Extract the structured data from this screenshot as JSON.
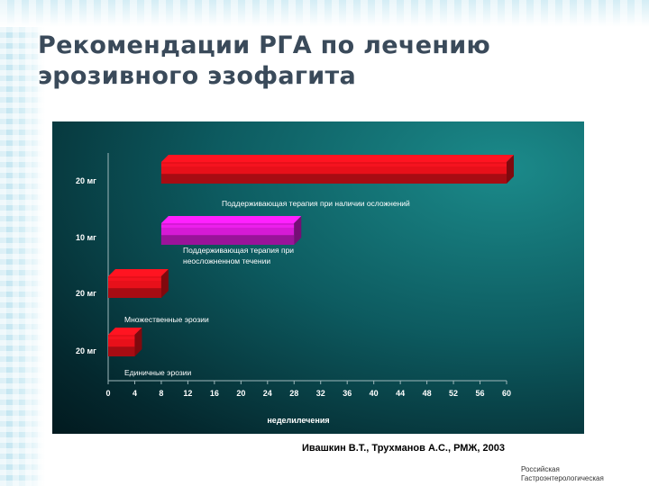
{
  "slide": {
    "title_line1": "Рекомендации РГА по лечению",
    "title_line2": "эрозивного эзофагита",
    "source": "Ивашкин В.Т., Трухманов А.С., РМЖ, 2003",
    "org_line1": "Российская",
    "org_line2": "Гастроэнтерологическая"
  },
  "chart_data": {
    "type": "bar",
    "orientation": "horizontal",
    "xlabel": "неделилечения",
    "xlim": [
      0,
      60
    ],
    "xticks": [
      0,
      4,
      8,
      12,
      16,
      20,
      24,
      28,
      32,
      36,
      40,
      44,
      48,
      52,
      56,
      60
    ],
    "series": [
      {
        "name": "Поддерживающая терапия при наличии осложнений",
        "category": "20 мг",
        "start": 8,
        "end": 60,
        "color": "#e8101a"
      },
      {
        "name": "Поддерживающая терапия при неосложненном течении",
        "category": "10 мг",
        "start": 8,
        "end": 28,
        "color": "#d61ad6"
      },
      {
        "name": "Множественные эрозии",
        "category": "20 мг",
        "start": 0,
        "end": 8,
        "color": "#e8101a"
      },
      {
        "name": "Единичные эрозии",
        "category": "20 мг",
        "start": 0,
        "end": 4,
        "color": "#e8101a"
      }
    ],
    "label_color": "#ffffff",
    "background": "#0d5b60"
  }
}
